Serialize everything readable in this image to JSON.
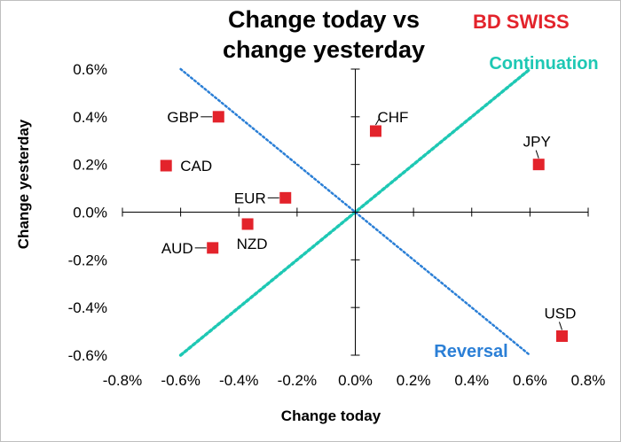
{
  "logo": {
    "text_a": "BD",
    "text_b": "SWISS",
    "color": "#e3232b"
  },
  "chart_data": {
    "type": "scatter",
    "title_lines": [
      "Change today vs",
      "change yesterday"
    ],
    "xlabel": "Change today",
    "ylabel": "Change yesterday",
    "xlim": [
      -0.8,
      0.8
    ],
    "ylim": [
      -0.6,
      0.6
    ],
    "x_ticks": [
      -0.8,
      -0.6,
      -0.4,
      -0.2,
      0.0,
      0.2,
      0.4,
      0.6,
      0.8
    ],
    "x_tick_labels": [
      "-0.8%",
      "-0.6%",
      "-0.4%",
      "-0.2%",
      "0.0%",
      "0.2%",
      "0.4%",
      "0.6%",
      "0.8%"
    ],
    "y_ticks": [
      0.6,
      0.4,
      0.2,
      0.0,
      -0.2,
      -0.4,
      -0.6
    ],
    "y_tick_labels": [
      "0.6%",
      "0.4%",
      "0.2%",
      "0.0%",
      "-0.2%",
      "-0.4%",
      "-0.6%"
    ],
    "marker_color": "#e3232b",
    "points": [
      {
        "label": "GBP",
        "x": -0.47,
        "y": 0.4,
        "label_side": "left",
        "leader": true
      },
      {
        "label": "CAD",
        "x": -0.65,
        "y": 0.195,
        "label_side": "right",
        "leader": false
      },
      {
        "label": "EUR",
        "x": -0.24,
        "y": 0.06,
        "label_side": "left",
        "leader": true
      },
      {
        "label": "NZD",
        "x": -0.37,
        "y": -0.05,
        "label_side": "below",
        "leader": false
      },
      {
        "label": "AUD",
        "x": -0.49,
        "y": -0.15,
        "label_side": "left",
        "leader": true
      },
      {
        "label": "CHF",
        "x": 0.07,
        "y": 0.34,
        "label_side": "above-right",
        "leader": true
      },
      {
        "label": "JPY",
        "x": 0.63,
        "y": 0.2,
        "label_side": "above",
        "leader": true
      },
      {
        "label": "USD",
        "x": 0.71,
        "y": -0.52,
        "label_side": "above",
        "leader": true
      }
    ],
    "reference_lines": [
      {
        "name": "Continuation",
        "from": [
          -0.6,
          -0.6
        ],
        "to": [
          0.6,
          0.6
        ],
        "color": "#1ec8b4"
      },
      {
        "name": "Reversal",
        "from": [
          -0.6,
          0.6
        ],
        "to": [
          0.6,
          -0.6
        ],
        "color": "#2b7fd6"
      }
    ]
  }
}
